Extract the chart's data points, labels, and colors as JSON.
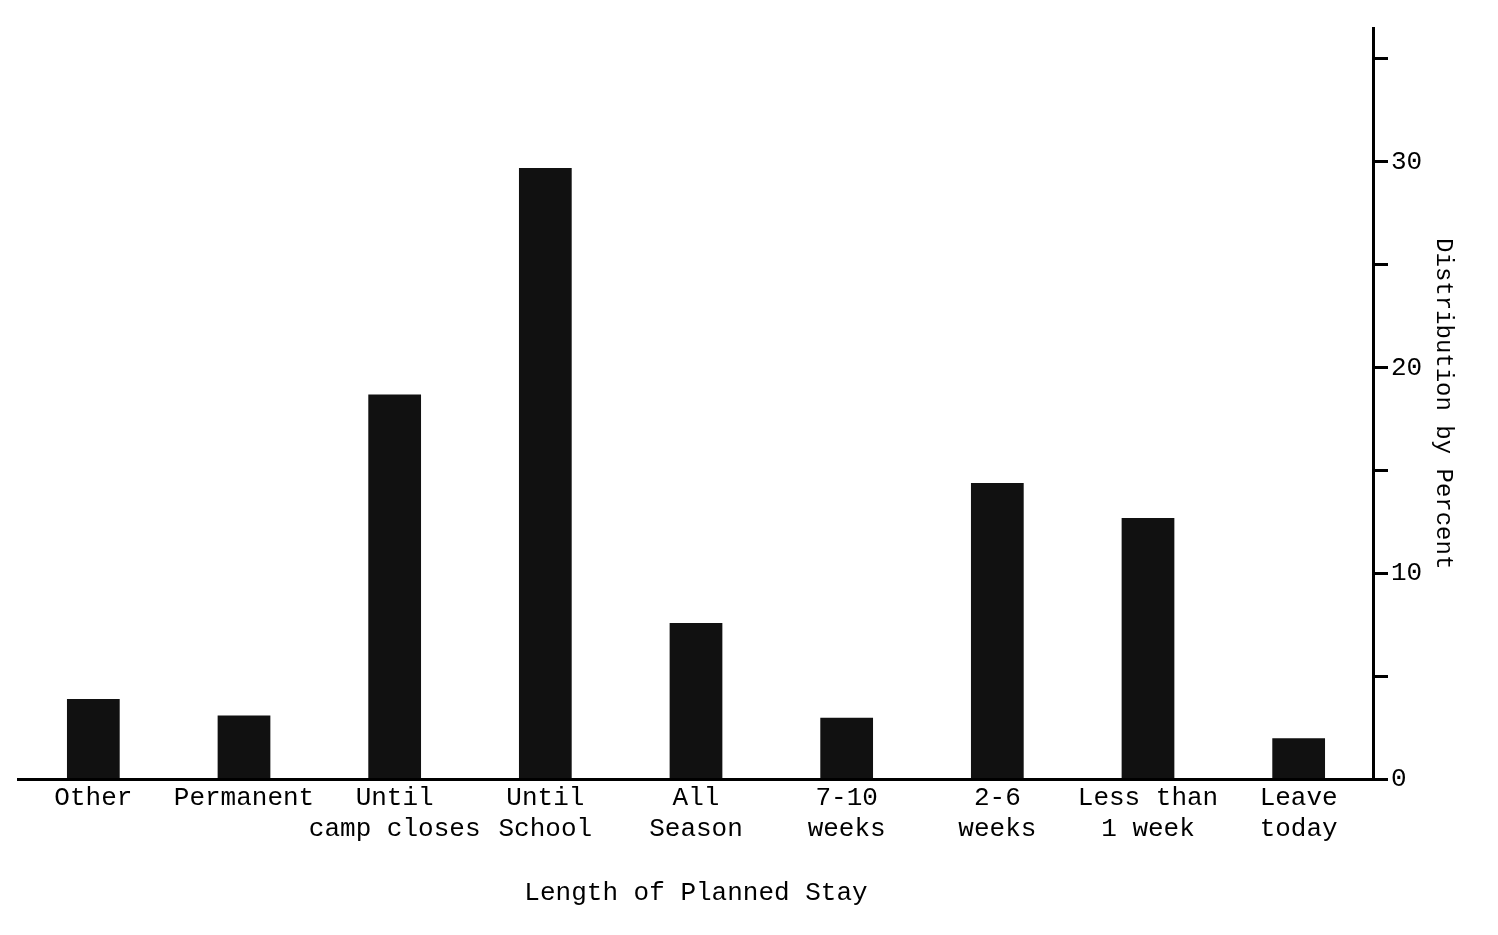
{
  "chart_data": {
    "type": "bar",
    "xlabel": "Length of Planned Stay",
    "ylabel": "Distribution by Percent",
    "categories": [
      "Other",
      "Permanent",
      "Until\ncamp closes",
      "Until\nSchool",
      "All\nSeason",
      "7-10\nweeks",
      "2-6\nweeks",
      "Less than\n1 week",
      "Leave\ntoday"
    ],
    "values": [
      3.9,
      3.1,
      18.7,
      29.7,
      7.6,
      3,
      14.4,
      12.7,
      2
    ],
    "color": "#111111",
    "ylim": [
      0,
      36.5
    ],
    "yticks": [
      0,
      {
        "value": 5,
        "label": null
      },
      10,
      {
        "value": 15,
        "label": null
      },
      20,
      {
        "value": 25,
        "label": null
      },
      30,
      {
        "value": 35,
        "label": null
      }
    ],
    "grid": false,
    "legend": false
  }
}
